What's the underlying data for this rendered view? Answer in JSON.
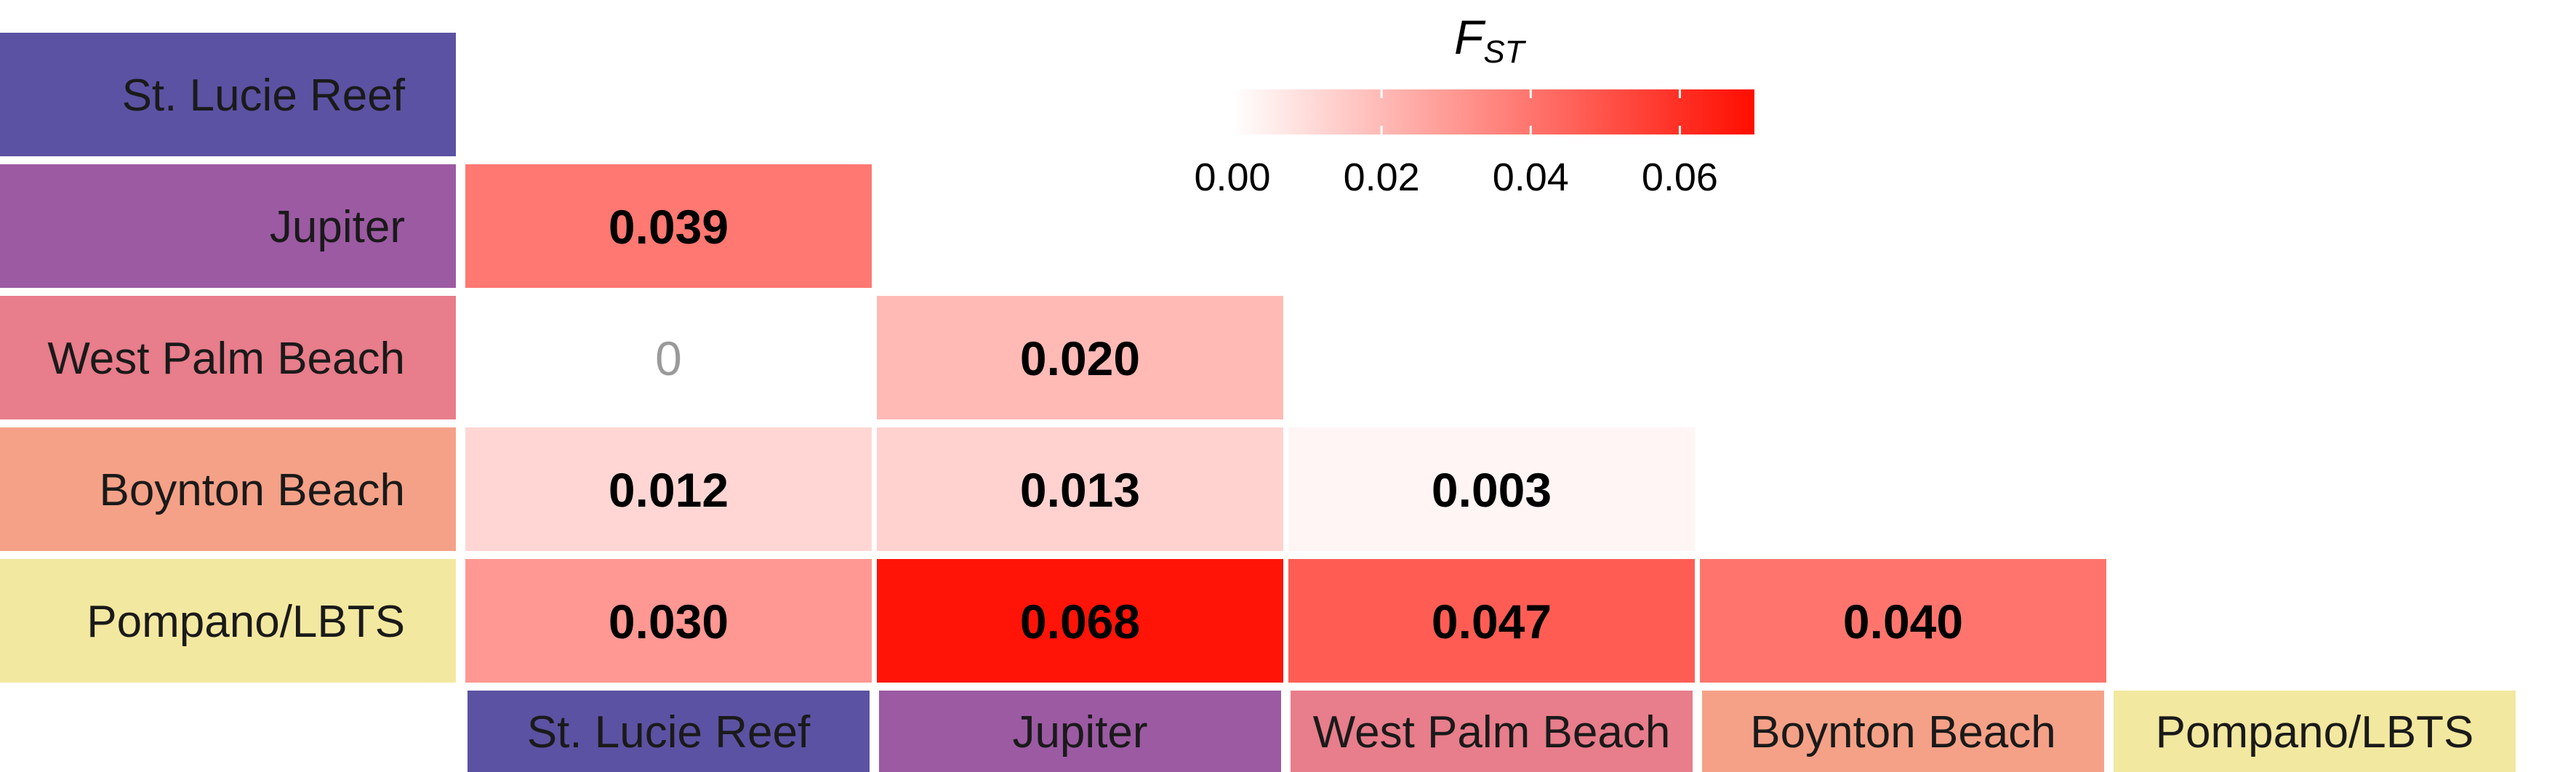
{
  "chart_data": {
    "type": "heatmap",
    "populations": [
      "St. Lucie Reef",
      "Jupiter",
      "West Palm Beach",
      "Boynton Beach",
      "Pompano/LBTS"
    ],
    "population_colors": [
      "#5b52a3",
      "#9c5aa3",
      "#e87d8b",
      "#f5a187",
      "#f3e89f"
    ],
    "matrix": [
      {
        "row": "Jupiter",
        "values": [
          {
            "value": 0.039,
            "label": "0.039"
          }
        ]
      },
      {
        "row": "West Palm Beach",
        "values": [
          {
            "value": 0,
            "label": "0"
          },
          {
            "value": 0.02,
            "label": "0.020"
          }
        ]
      },
      {
        "row": "Boynton Beach",
        "values": [
          {
            "value": 0.012,
            "label": "0.012"
          },
          {
            "value": 0.013,
            "label": "0.013"
          },
          {
            "value": 0.003,
            "label": "0.003"
          }
        ]
      },
      {
        "row": "Pompano/LBTS",
        "values": [
          {
            "value": 0.03,
            "label": "0.030"
          },
          {
            "value": 0.068,
            "label": "0.068"
          },
          {
            "value": 0.047,
            "label": "0.047"
          },
          {
            "value": 0.04,
            "label": "0.040"
          }
        ]
      }
    ],
    "legend": {
      "title": "F",
      "title_subscript": "ST",
      "ticks": [
        {
          "value": 0.0,
          "label": "0.00"
        },
        {
          "value": 0.02,
          "label": "0.02"
        },
        {
          "value": 0.04,
          "label": "0.04"
        },
        {
          "value": 0.06,
          "label": "0.06"
        }
      ],
      "range": [
        0,
        0.07
      ],
      "low_color": "#ffffff",
      "high_color": "#ff0d00",
      "placement": "top-right"
    }
  }
}
